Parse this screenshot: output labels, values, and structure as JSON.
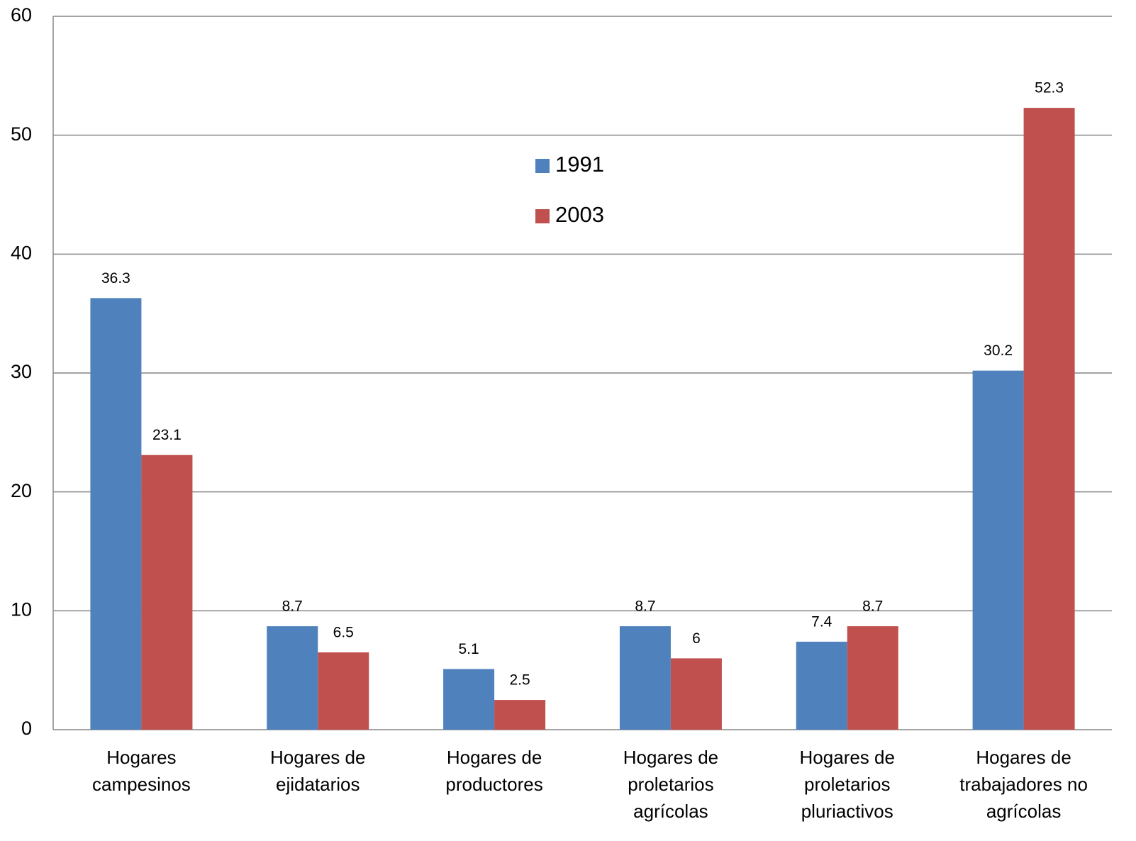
{
  "chart_data": {
    "type": "bar",
    "categories": [
      [
        "Hogares",
        "campesinos"
      ],
      [
        "Hogares de",
        "ejidatarios"
      ],
      [
        "Hogares de",
        "productores"
      ],
      [
        "Hogares de",
        "proletarios",
        "agrícolas"
      ],
      [
        "Hogares de",
        "proletarios",
        "pluriactivos"
      ],
      [
        "Hogares de",
        "trabajadores no",
        "agrícolas"
      ]
    ],
    "series": [
      {
        "name": "1991",
        "color": "#4f81bd",
        "values": [
          36.3,
          8.7,
          5.1,
          8.7,
          7.4,
          30.2
        ]
      },
      {
        "name": "2003",
        "color": "#c0504d",
        "values": [
          23.1,
          6.5,
          2.5,
          6,
          8.7,
          52.3
        ]
      }
    ],
    "ylim": [
      0,
      60
    ],
    "yticks": [
      0,
      10,
      20,
      30,
      40,
      50,
      60
    ],
    "grid": true,
    "legend": "top-center"
  }
}
